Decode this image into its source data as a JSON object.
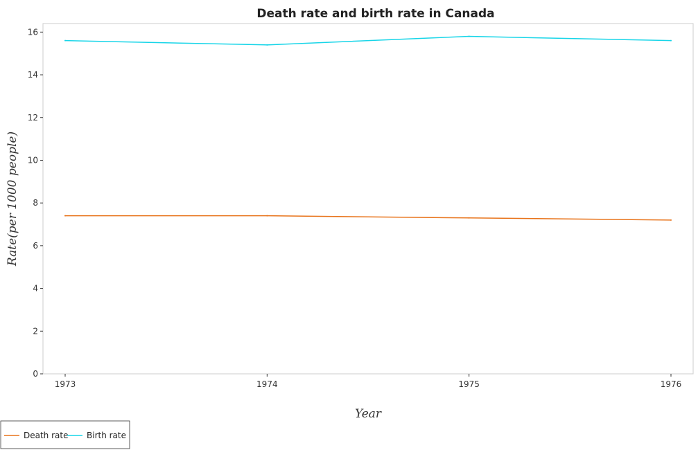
{
  "chart_data": {
    "type": "line",
    "title": "Death rate and birth rate in Canada",
    "xlabel": "Year",
    "ylabel": "Rate(per 1000 people)",
    "categories": [
      "1973",
      "1974",
      "1975",
      "1976"
    ],
    "ylim": [
      0,
      16.4
    ],
    "yticks": [
      0,
      2,
      4,
      6,
      8,
      10,
      12,
      14,
      16
    ],
    "ytick_labels": [
      "0",
      "2",
      "4",
      "6",
      "8",
      "10",
      "12",
      "14",
      "16"
    ],
    "grid": false,
    "legend_position": "bottom-left",
    "series": [
      {
        "name": "Death rate",
        "color": "#e8731a",
        "values": [
          7.4,
          7.4,
          7.3,
          7.2
        ]
      },
      {
        "name": "Birth rate",
        "color": "#17d5e8",
        "values": [
          15.6,
          15.4,
          15.8,
          15.6
        ]
      }
    ]
  }
}
